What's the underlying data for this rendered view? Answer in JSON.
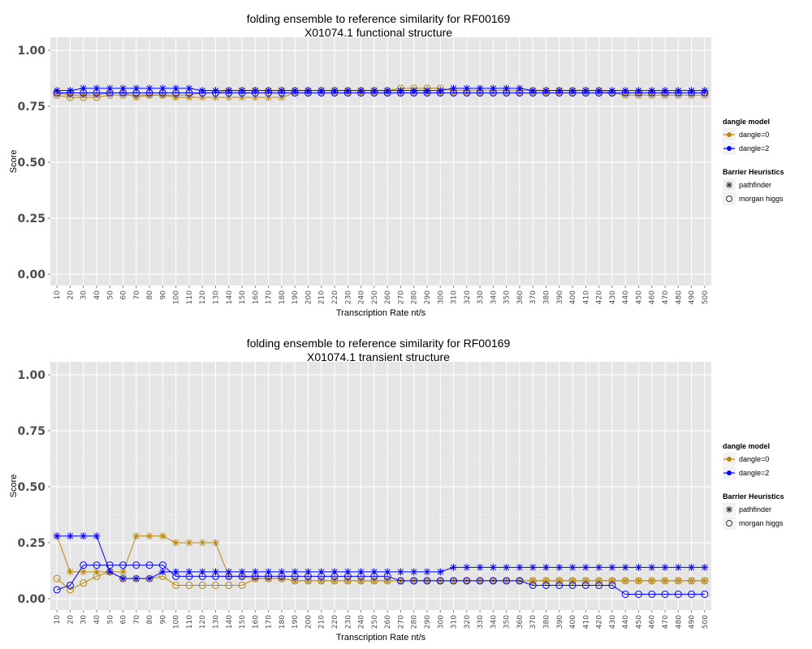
{
  "colors": {
    "dangle0": "#b8860b",
    "dangle2": "#0000ff",
    "panel": "#e5e5e5"
  },
  "legend": {
    "dangle_title": "dangle model",
    "dangle_items": [
      "dangle=0",
      "dangle=2"
    ],
    "barrier_title": "Barrier Heuristics",
    "barrier_items": [
      "pathfinder",
      "morgan higgs"
    ]
  },
  "chart_data": [
    {
      "type": "line",
      "title": "folding ensemble to reference similarity for RF00169",
      "subtitle": "X01074.1 functional structure",
      "xlabel": "Transcription Rate nt/s",
      "ylabel": "Score",
      "ylim": [
        0,
        1
      ],
      "yticks": [
        "0.00",
        "0.25",
        "0.50",
        "0.75",
        "1.00"
      ],
      "x": [
        10,
        20,
        30,
        40,
        50,
        60,
        70,
        80,
        90,
        100,
        110,
        120,
        130,
        140,
        150,
        160,
        170,
        180,
        190,
        200,
        210,
        220,
        230,
        240,
        250,
        260,
        270,
        280,
        290,
        300,
        310,
        320,
        330,
        340,
        350,
        360,
        370,
        380,
        390,
        400,
        410,
        420,
        430,
        440,
        450,
        460,
        470,
        480,
        490,
        500
      ],
      "grid": true,
      "legend_position": "right",
      "series": [
        {
          "name": "dangle=0, pathfinder",
          "color": "dangle0",
          "marker": "star",
          "values": [
            0.81,
            0.8,
            0.8,
            0.8,
            0.81,
            0.81,
            0.79,
            0.8,
            0.8,
            0.79,
            0.79,
            0.79,
            0.79,
            0.79,
            0.79,
            0.79,
            0.79,
            0.79,
            0.81,
            0.81,
            0.81,
            0.81,
            0.81,
            0.81,
            0.81,
            0.81,
            0.81,
            0.81,
            0.81,
            0.81,
            0.81,
            0.81,
            0.81,
            0.81,
            0.81,
            0.81,
            0.81,
            0.81,
            0.81,
            0.81,
            0.81,
            0.81,
            0.81,
            0.81,
            0.81,
            0.81,
            0.81,
            0.81,
            0.81,
            0.81
          ]
        },
        {
          "name": "dangle=0, morgan higgs",
          "color": "dangle0",
          "marker": "circle",
          "values": [
            0.8,
            0.79,
            0.79,
            0.79,
            0.8,
            0.8,
            0.8,
            0.8,
            0.8,
            0.8,
            0.8,
            0.81,
            0.81,
            0.82,
            0.82,
            0.82,
            0.82,
            0.82,
            0.82,
            0.82,
            0.82,
            0.82,
            0.82,
            0.82,
            0.82,
            0.82,
            0.83,
            0.83,
            0.83,
            0.83,
            0.82,
            0.82,
            0.82,
            0.82,
            0.82,
            0.82,
            0.82,
            0.82,
            0.82,
            0.82,
            0.82,
            0.82,
            0.81,
            0.8,
            0.8,
            0.8,
            0.8,
            0.8,
            0.8,
            0.8
          ]
        },
        {
          "name": "dangle=2, pathfinder",
          "color": "dangle2",
          "marker": "star",
          "values": [
            0.82,
            0.82,
            0.83,
            0.83,
            0.83,
            0.83,
            0.83,
            0.83,
            0.83,
            0.83,
            0.83,
            0.82,
            0.82,
            0.82,
            0.82,
            0.82,
            0.82,
            0.82,
            0.82,
            0.82,
            0.82,
            0.82,
            0.82,
            0.82,
            0.82,
            0.82,
            0.82,
            0.82,
            0.82,
            0.82,
            0.83,
            0.83,
            0.83,
            0.83,
            0.83,
            0.83,
            0.82,
            0.82,
            0.82,
            0.82,
            0.82,
            0.82,
            0.82,
            0.82,
            0.82,
            0.82,
            0.82,
            0.82,
            0.82,
            0.82
          ]
        },
        {
          "name": "dangle=2, morgan higgs",
          "color": "dangle2",
          "marker": "circle",
          "values": [
            0.81,
            0.81,
            0.81,
            0.81,
            0.81,
            0.81,
            0.81,
            0.81,
            0.81,
            0.81,
            0.81,
            0.81,
            0.81,
            0.81,
            0.81,
            0.81,
            0.81,
            0.81,
            0.81,
            0.81,
            0.81,
            0.81,
            0.81,
            0.81,
            0.81,
            0.81,
            0.81,
            0.81,
            0.81,
            0.81,
            0.81,
            0.81,
            0.81,
            0.81,
            0.81,
            0.81,
            0.81,
            0.81,
            0.81,
            0.81,
            0.81,
            0.81,
            0.81,
            0.81,
            0.81,
            0.81,
            0.81,
            0.81,
            0.81,
            0.81
          ]
        }
      ]
    },
    {
      "type": "line",
      "title": "folding ensemble to reference similarity for RF00169",
      "subtitle": "X01074.1 transient structure",
      "xlabel": "Transcription Rate nt/s",
      "ylabel": "Score",
      "ylim": [
        0,
        1
      ],
      "yticks": [
        "0.00",
        "0.25",
        "0.50",
        "0.75",
        "1.00"
      ],
      "x": [
        10,
        20,
        30,
        40,
        50,
        60,
        70,
        80,
        90,
        100,
        110,
        120,
        130,
        140,
        150,
        160,
        170,
        180,
        190,
        200,
        210,
        220,
        230,
        240,
        250,
        260,
        270,
        280,
        290,
        300,
        310,
        320,
        330,
        340,
        350,
        360,
        370,
        380,
        390,
        400,
        410,
        420,
        430,
        440,
        450,
        460,
        470,
        480,
        490,
        500
      ],
      "grid": true,
      "legend_position": "right",
      "series": [
        {
          "name": "dangle=0, pathfinder",
          "color": "dangle0",
          "marker": "star",
          "values": [
            0.28,
            0.12,
            0.12,
            0.12,
            0.12,
            0.12,
            0.28,
            0.28,
            0.28,
            0.25,
            0.25,
            0.25,
            0.25,
            0.1,
            0.1,
            0.09,
            0.09,
            0.09,
            0.08,
            0.08,
            0.08,
            0.08,
            0.08,
            0.08,
            0.08,
            0.08,
            0.08,
            0.08,
            0.08,
            0.08,
            0.08,
            0.08,
            0.08,
            0.08,
            0.08,
            0.08,
            0.08,
            0.08,
            0.08,
            0.08,
            0.08,
            0.08,
            0.08,
            0.08,
            0.08,
            0.08,
            0.08,
            0.08,
            0.08,
            0.08
          ]
        },
        {
          "name": "dangle=0, morgan higgs",
          "color": "dangle0",
          "marker": "circle",
          "values": [
            0.09,
            0.04,
            0.07,
            0.1,
            0.12,
            0.09,
            0.09,
            0.09,
            0.1,
            0.06,
            0.06,
            0.06,
            0.06,
            0.06,
            0.06,
            0.09,
            0.09,
            0.09,
            0.08,
            0.08,
            0.08,
            0.08,
            0.08,
            0.08,
            0.08,
            0.08,
            0.08,
            0.08,
            0.08,
            0.08,
            0.08,
            0.08,
            0.08,
            0.08,
            0.08,
            0.08,
            0.08,
            0.08,
            0.08,
            0.08,
            0.08,
            0.08,
            0.08,
            0.08,
            0.08,
            0.08,
            0.08,
            0.08,
            0.08,
            0.08
          ]
        },
        {
          "name": "dangle=2, pathfinder",
          "color": "dangle2",
          "marker": "star",
          "values": [
            0.28,
            0.28,
            0.28,
            0.28,
            0.12,
            0.09,
            0.09,
            0.09,
            0.12,
            0.12,
            0.12,
            0.12,
            0.12,
            0.12,
            0.12,
            0.12,
            0.12,
            0.12,
            0.12,
            0.12,
            0.12,
            0.12,
            0.12,
            0.12,
            0.12,
            0.12,
            0.12,
            0.12,
            0.12,
            0.12,
            0.14,
            0.14,
            0.14,
            0.14,
            0.14,
            0.14,
            0.14,
            0.14,
            0.14,
            0.14,
            0.14,
            0.14,
            0.14,
            0.14,
            0.14,
            0.14,
            0.14,
            0.14,
            0.14,
            0.14
          ]
        },
        {
          "name": "dangle=2, morgan higgs",
          "color": "dangle2",
          "marker": "circle",
          "values": [
            0.04,
            0.06,
            0.15,
            0.15,
            0.15,
            0.15,
            0.15,
            0.15,
            0.15,
            0.1,
            0.1,
            0.1,
            0.1,
            0.1,
            0.1,
            0.1,
            0.1,
            0.1,
            0.1,
            0.1,
            0.1,
            0.1,
            0.1,
            0.1,
            0.1,
            0.1,
            0.08,
            0.08,
            0.08,
            0.08,
            0.08,
            0.08,
            0.08,
            0.08,
            0.08,
            0.08,
            0.06,
            0.06,
            0.06,
            0.06,
            0.06,
            0.06,
            0.06,
            0.02,
            0.02,
            0.02,
            0.02,
            0.02,
            0.02,
            0.02
          ]
        }
      ]
    }
  ]
}
